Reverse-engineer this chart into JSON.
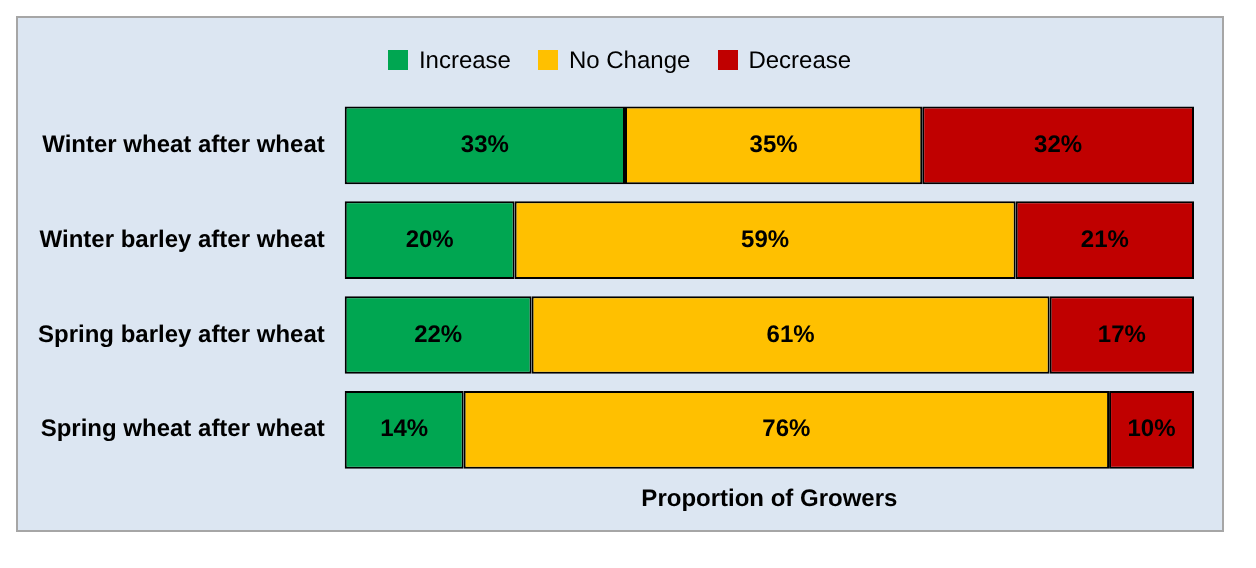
{
  "chart_data": {
    "type": "bar",
    "orientation": "horizontal",
    "stacked": true,
    "xlabel": "Proportion of Growers",
    "categories": [
      "Winter wheat after wheat",
      "Winter barley after wheat",
      "Spring barley after wheat",
      "Spring wheat after wheat"
    ],
    "xlim": [
      0,
      100
    ],
    "tick_labels": "y",
    "legend": "top",
    "grid": false,
    "series": [
      {
        "name": "Increase",
        "color": "#00a651",
        "values": [
          33,
          20,
          22,
          14
        ],
        "value_labels": [
          "33%",
          "20%",
          "22%",
          "14%"
        ]
      },
      {
        "name": "No Change",
        "color": "#ffc000",
        "values": [
          35,
          59,
          61,
          76
        ],
        "value_labels": [
          "35%",
          "59%",
          "61%",
          "76%"
        ]
      },
      {
        "name": "Decrease",
        "color": "#c00000",
        "values": [
          32,
          21,
          17,
          10
        ],
        "value_labels": [
          "32%",
          "21%",
          "17%",
          "10%"
        ]
      }
    ]
  }
}
